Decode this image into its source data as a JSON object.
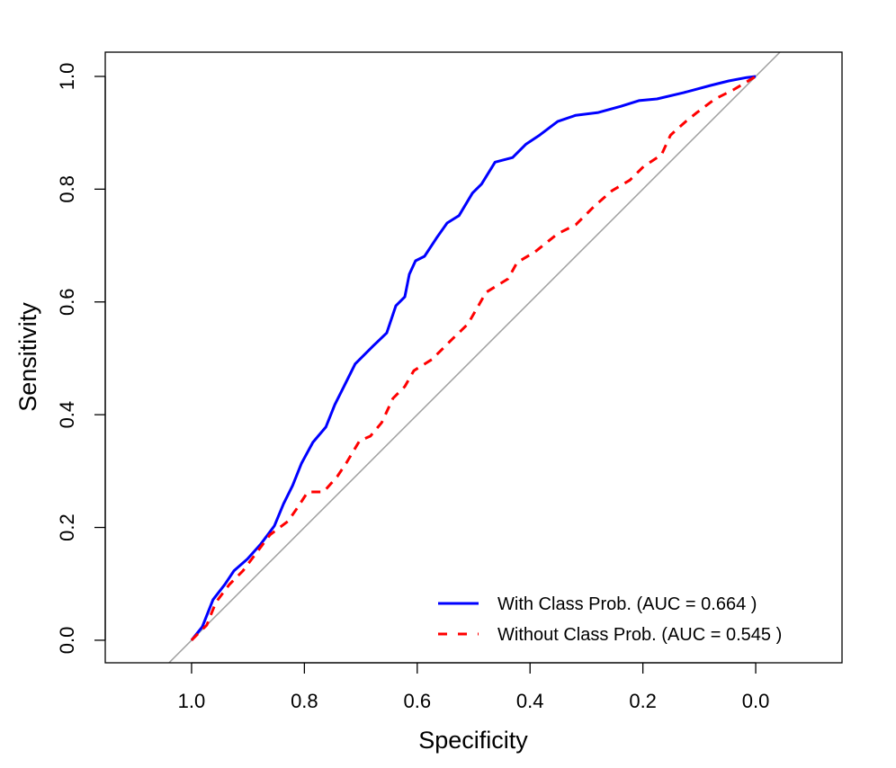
{
  "chart_data": {
    "type": "line",
    "title": "",
    "xlabel": "Specificity",
    "ylabel": "Sensitivity",
    "xlim": [
      1.153,
      -0.153
    ],
    "ylim": [
      -0.04,
      1.043
    ],
    "x_reversed": true,
    "xticks": [
      "1.0",
      "0.8",
      "0.6",
      "0.4",
      "0.2",
      "0.0"
    ],
    "xtick_values": [
      1.0,
      0.8,
      0.6,
      0.4,
      0.2,
      0.0
    ],
    "yticks": [
      "0.0",
      "0.2",
      "0.4",
      "0.6",
      "0.8",
      "1.0"
    ],
    "ytick_values": [
      0.0,
      0.2,
      0.4,
      0.6,
      0.8,
      1.0
    ],
    "grid": false,
    "legend_position": "bottom-right",
    "reference_line": {
      "type": "diagonal",
      "color": "#a0a0a0"
    },
    "series": [
      {
        "name": "With Class Prob. (AUC = 0.664 )",
        "color": "#0000ff",
        "style": "solid",
        "points": [
          [
            1.0,
            0.0
          ],
          [
            0.981,
            0.024
          ],
          [
            0.962,
            0.072
          ],
          [
            0.941,
            0.099
          ],
          [
            0.925,
            0.123
          ],
          [
            0.901,
            0.144
          ],
          [
            0.877,
            0.171
          ],
          [
            0.853,
            0.203
          ],
          [
            0.837,
            0.242
          ],
          [
            0.821,
            0.274
          ],
          [
            0.805,
            0.314
          ],
          [
            0.785,
            0.351
          ],
          [
            0.762,
            0.378
          ],
          [
            0.746,
            0.418
          ],
          [
            0.73,
            0.45
          ],
          [
            0.71,
            0.49
          ],
          [
            0.678,
            0.522
          ],
          [
            0.654,
            0.545
          ],
          [
            0.638,
            0.593
          ],
          [
            0.622,
            0.609
          ],
          [
            0.614,
            0.649
          ],
          [
            0.603,
            0.673
          ],
          [
            0.587,
            0.681
          ],
          [
            0.566,
            0.713
          ],
          [
            0.547,
            0.74
          ],
          [
            0.526,
            0.753
          ],
          [
            0.502,
            0.793
          ],
          [
            0.486,
            0.809
          ],
          [
            0.462,
            0.848
          ],
          [
            0.431,
            0.856
          ],
          [
            0.407,
            0.88
          ],
          [
            0.383,
            0.896
          ],
          [
            0.351,
            0.92
          ],
          [
            0.319,
            0.931
          ],
          [
            0.279,
            0.936
          ],
          [
            0.239,
            0.947
          ],
          [
            0.207,
            0.957
          ],
          [
            0.175,
            0.96
          ],
          [
            0.128,
            0.971
          ],
          [
            0.08,
            0.984
          ],
          [
            0.048,
            0.992
          ],
          [
            0.016,
            0.998
          ],
          [
            0.0,
            1.0
          ]
        ]
      },
      {
        "name": "Without Class Prob. (AUC = 0.545 )",
        "color": "#ff0000",
        "style": "dashed",
        "points": [
          [
            1.0,
            0.0
          ],
          [
            0.973,
            0.027
          ],
          [
            0.957,
            0.067
          ],
          [
            0.933,
            0.099
          ],
          [
            0.909,
            0.123
          ],
          [
            0.885,
            0.155
          ],
          [
            0.861,
            0.187
          ],
          [
            0.829,
            0.211
          ],
          [
            0.813,
            0.234
          ],
          [
            0.794,
            0.263
          ],
          [
            0.766,
            0.263
          ],
          [
            0.742,
            0.29
          ],
          [
            0.726,
            0.314
          ],
          [
            0.702,
            0.354
          ],
          [
            0.683,
            0.362
          ],
          [
            0.663,
            0.386
          ],
          [
            0.643,
            0.429
          ],
          [
            0.622,
            0.45
          ],
          [
            0.606,
            0.478
          ],
          [
            0.574,
            0.498
          ],
          [
            0.542,
            0.53
          ],
          [
            0.51,
            0.561
          ],
          [
            0.478,
            0.617
          ],
          [
            0.439,
            0.641
          ],
          [
            0.423,
            0.67
          ],
          [
            0.391,
            0.689
          ],
          [
            0.351,
            0.721
          ],
          [
            0.319,
            0.737
          ],
          [
            0.287,
            0.769
          ],
          [
            0.255,
            0.797
          ],
          [
            0.223,
            0.816
          ],
          [
            0.199,
            0.84
          ],
          [
            0.167,
            0.861
          ],
          [
            0.151,
            0.896
          ],
          [
            0.124,
            0.92
          ],
          [
            0.104,
            0.936
          ],
          [
            0.072,
            0.96
          ],
          [
            0.04,
            0.976
          ],
          [
            0.0,
            1.0
          ]
        ]
      }
    ]
  }
}
